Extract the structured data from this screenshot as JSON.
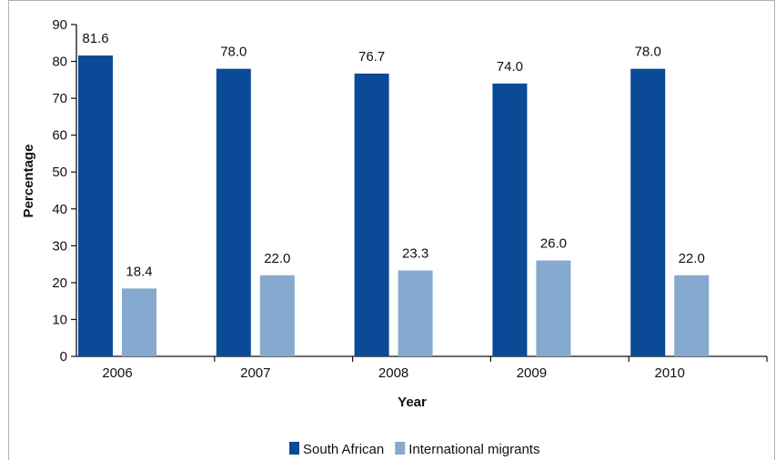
{
  "chart_data": {
    "type": "bar",
    "title": "",
    "xlabel": "Year",
    "ylabel": "Percentage",
    "ylim": [
      0,
      90
    ],
    "yticks": [
      0,
      10,
      20,
      30,
      40,
      50,
      60,
      70,
      80,
      90
    ],
    "categories": [
      "2006",
      "2007",
      "2008",
      "2009",
      "2010"
    ],
    "series": [
      {
        "name": "South African",
        "color": "#0a4a97",
        "values": [
          81.6,
          78.0,
          76.7,
          74.0,
          78.0
        ],
        "labels": [
          "81.6",
          "78.0",
          "76.7",
          "74.0",
          "78.0"
        ]
      },
      {
        "name": "International migrants",
        "color": "#86a9cf",
        "values": [
          18.4,
          22.0,
          23.3,
          26.0,
          22.0
        ],
        "labels": [
          "18.4",
          "22.0",
          "23.3",
          "26.0",
          "22.0"
        ]
      }
    ],
    "grid": false,
    "legend": "bottom"
  }
}
